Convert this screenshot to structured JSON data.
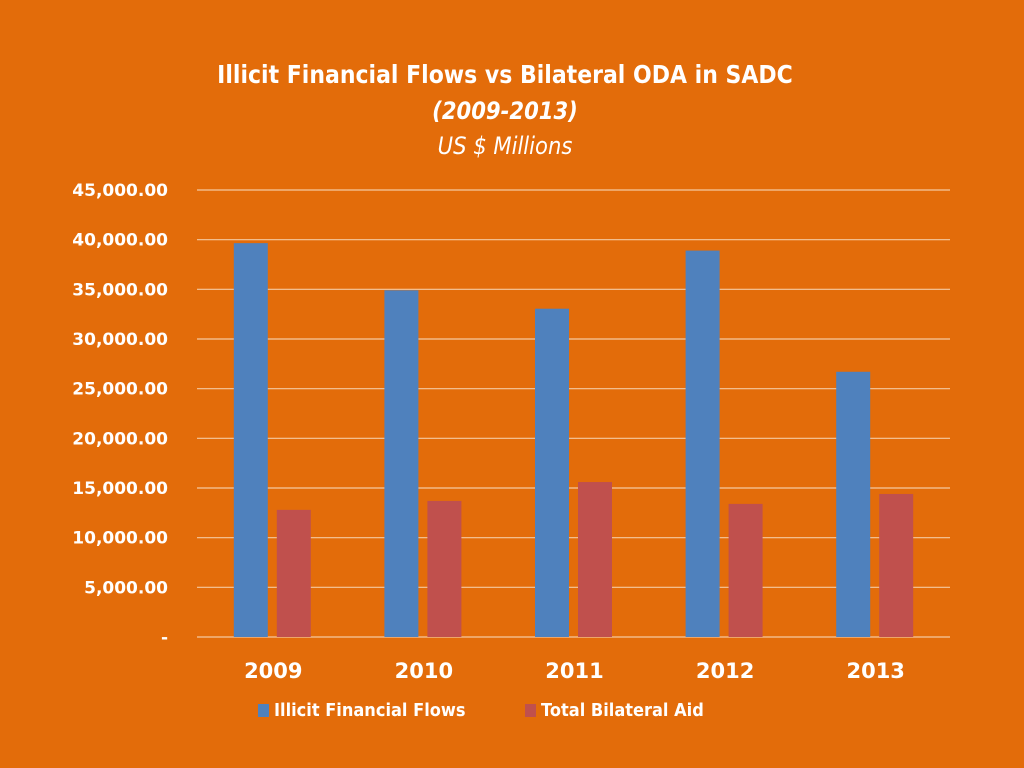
{
  "chart_data": {
    "type": "bar",
    "title": "Illicit Financial Flows vs Bilateral ODA in SADC",
    "subtitle": "(2009-2013)",
    "units_label": "US $ Millions",
    "xlabel": "",
    "ylabel": "",
    "categories": [
      "2009",
      "2010",
      "2011",
      "2012",
      "2013"
    ],
    "series": [
      {
        "name": "Illicit Financial Flows",
        "color": "#4F81BD",
        "values": [
          39650,
          34900,
          33050,
          38900,
          26700
        ]
      },
      {
        "name": "Total Bilateral Aid",
        "color": "#C0504D",
        "values": [
          12800,
          13700,
          15600,
          13400,
          14400
        ]
      }
    ],
    "ylim": [
      0,
      45000
    ],
    "yticks": [
      0,
      5000,
      10000,
      15000,
      20000,
      25000,
      30000,
      35000,
      40000,
      45000
    ],
    "ytick_labels": [
      "-",
      "5,000.00",
      "10,000.00",
      "15,000.00",
      "20,000.00",
      "25,000.00",
      "30,000.00",
      "35,000.00",
      "40,000.00",
      "45,000.00"
    ],
    "grid": true,
    "gridline_color": "#F5C9A0",
    "legend_position": "bottom"
  },
  "colors": {
    "background": "#E36C0A",
    "text": "#FFFFFF"
  }
}
